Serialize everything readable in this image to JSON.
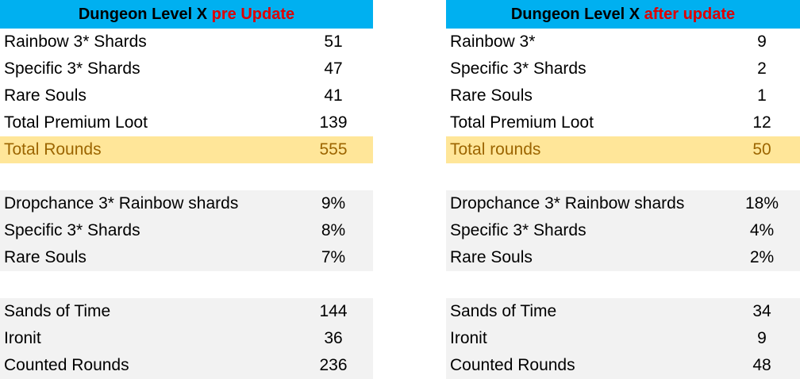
{
  "left": {
    "title_prefix": "Dungeon Level X ",
    "title_highlight": "pre Update",
    "group1": [
      {
        "label": "Rainbow 3* Shards",
        "value": "51"
      },
      {
        "label": "Specific 3* Shards",
        "value": "47"
      },
      {
        "label": "Rare Souls",
        "value": "41"
      },
      {
        "label": "Total Premium Loot",
        "value": "139"
      },
      {
        "label": "Total Rounds",
        "value": "555"
      }
    ],
    "group2": [
      {
        "label": "Dropchance 3* Rainbow shards",
        "value": "9%"
      },
      {
        "label": "Specific 3* Shards",
        "value": "8%"
      },
      {
        "label": "Rare Souls",
        "value": "7%"
      }
    ],
    "group3": [
      {
        "label": "Sands of Time",
        "value": "144"
      },
      {
        "label": "Ironit",
        "value": "36"
      },
      {
        "label": "Counted Rounds",
        "value": "236"
      }
    ]
  },
  "right": {
    "title_prefix": "Dungeon Level X ",
    "title_highlight": "after update",
    "group1": [
      {
        "label": "Rainbow 3*",
        "value": "9"
      },
      {
        "label": "Specific 3* Shards",
        "value": "2"
      },
      {
        "label": "Rare Souls",
        "value": "1"
      },
      {
        "label": "Total Premium Loot",
        "value": "12"
      },
      {
        "label": "Total rounds",
        "value": "50"
      }
    ],
    "group2": [
      {
        "label": "Dropchance 3* Rainbow shards",
        "value": "18%"
      },
      {
        "label": "Specific 3* Shards",
        "value": "4%"
      },
      {
        "label": "Rare Souls",
        "value": "2%"
      }
    ],
    "group3": [
      {
        "label": "Sands of Time",
        "value": "34"
      },
      {
        "label": "Ironit",
        "value": "9"
      },
      {
        "label": "Counted Rounds",
        "value": "48"
      }
    ]
  },
  "colors": {
    "header_bg": "#00b0f0",
    "header_highlight": "#e00000",
    "total_row_bg": "#ffe699",
    "total_row_text": "#9c6500",
    "shaded_bg": "#f2f2f2"
  }
}
